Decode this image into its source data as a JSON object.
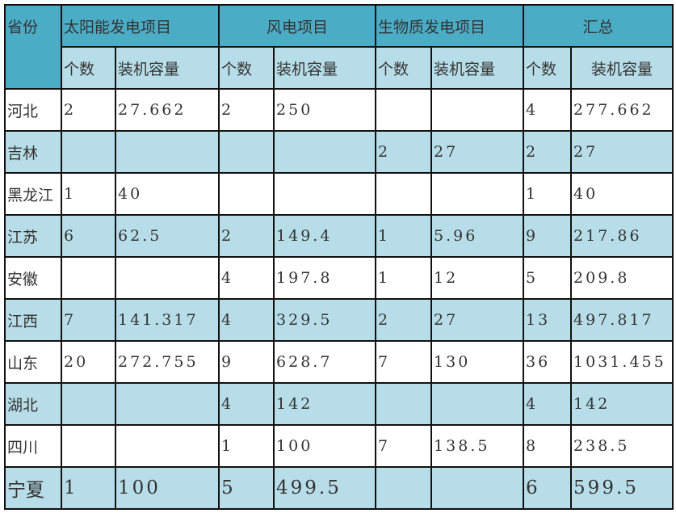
{
  "header": {
    "province": "省份",
    "groups": [
      "太阳能发电项目",
      "风电项目",
      "生物质发电项目",
      "汇总"
    ],
    "sub": [
      "个数",
      "装机容量"
    ]
  },
  "colors": {
    "header": "#4bacc6",
    "alt_row": "#b7dde8"
  },
  "rows": [
    {
      "province": "河北",
      "cells": [
        "2",
        "27.662",
        "2",
        "250",
        "",
        "",
        "4",
        "277.662"
      ]
    },
    {
      "province": "吉林",
      "cells": [
        "",
        "",
        "",
        "",
        "2",
        "27",
        "2",
        "27"
      ]
    },
    {
      "province": "黑龙江",
      "cells": [
        "1",
        "40",
        "",
        "",
        "",
        "",
        "1",
        "40"
      ]
    },
    {
      "province": "江苏",
      "cells": [
        "6",
        "62.5",
        "2",
        "149.4",
        "1",
        "5.96",
        "9",
        "217.86"
      ]
    },
    {
      "province": "安徽",
      "cells": [
        "",
        "",
        "4",
        "197.8",
        "1",
        "12",
        "5",
        "209.8"
      ]
    },
    {
      "province": "江西",
      "cells": [
        "7",
        "141.317",
        "4",
        "329.5",
        "2",
        "27",
        "13",
        "497.817"
      ]
    },
    {
      "province": "山东",
      "cells": [
        "20",
        "272.755",
        "9",
        "628.7",
        "7",
        "130",
        "36",
        "1031.455"
      ]
    },
    {
      "province": "湖北",
      "cells": [
        "",
        "",
        "4",
        "142",
        "",
        "",
        "4",
        "142"
      ]
    },
    {
      "province": "四川",
      "cells": [
        "",
        "",
        "1",
        "100",
        "7",
        "138.5",
        "8",
        "238.5"
      ]
    },
    {
      "province": "宁夏",
      "cells": [
        "1",
        "100",
        "5",
        "499.5",
        "",
        "",
        "6",
        "599.5"
      ]
    }
  ]
}
